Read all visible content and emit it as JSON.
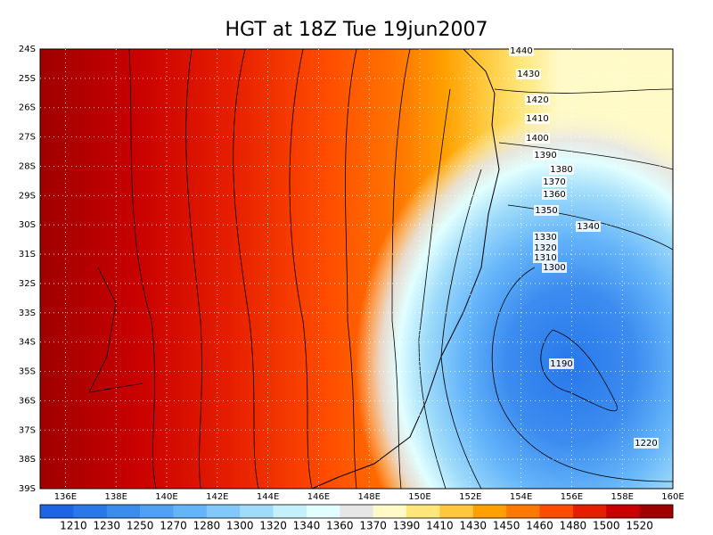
{
  "title": "HGT at 18Z Tue 19jun2007",
  "lat_ticks": [
    "24S",
    "25S",
    "26S",
    "27S",
    "28S",
    "29S",
    "30S",
    "31S",
    "32S",
    "33S",
    "34S",
    "35S",
    "36S",
    "37S",
    "38S",
    "39S"
  ],
  "lon_ticks": [
    "136E",
    "138E",
    "140E",
    "142E",
    "144E",
    "146E",
    "148E",
    "150E",
    "152E",
    "154E",
    "156E",
    "158E",
    "160E"
  ],
  "contour_labels": [
    1440,
    1430,
    1420,
    1410,
    1400,
    1390,
    1380,
    1370,
    1360,
    1350,
    1340,
    1330,
    1320,
    1310,
    1300,
    1190,
    1220
  ],
  "colorbar": {
    "colors": [
      "#1e64e6",
      "#2878eb",
      "#3c8cf0",
      "#50a0f5",
      "#64b4fa",
      "#82c8fa",
      "#a0dcfa",
      "#c3f0fa",
      "#e1ffff",
      "#e6e6e6",
      "#fffac8",
      "#ffe678",
      "#ffc83c",
      "#ffa000",
      "#ff7800",
      "#ff4b00",
      "#e61e00",
      "#c80000",
      "#a00000"
    ],
    "labels": [
      1210,
      1230,
      1250,
      1270,
      1280,
      1300,
      1320,
      1340,
      1360,
      1370,
      1390,
      1410,
      1430,
      1450,
      1460,
      1480,
      1500,
      1520
    ]
  }
}
